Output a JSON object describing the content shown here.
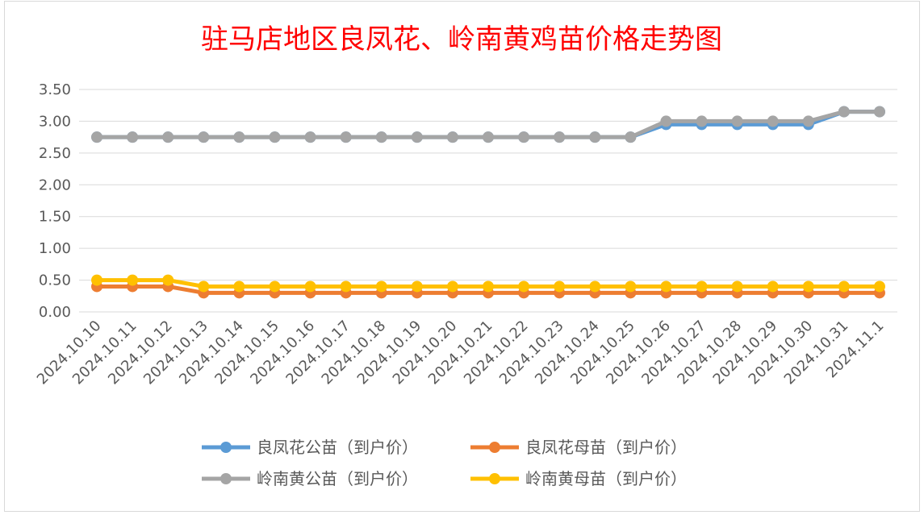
{
  "chart_data": {
    "type": "line",
    "title": "驻马店地区良凤花、岭南黄鸡苗价格走势图",
    "xlabel": "",
    "ylabel": "",
    "ylim": [
      0,
      3.5
    ],
    "yticks": [
      "0.00",
      "0.50",
      "1.00",
      "1.50",
      "2.00",
      "2.50",
      "3.00",
      "3.50"
    ],
    "grid": true,
    "legend_position": "bottom",
    "categories": [
      "2024.10.10",
      "2024.10.11",
      "2024.10.12",
      "2024.10.13",
      "2024.10.14",
      "2024.10.15",
      "2024.10.16",
      "2024.10.17",
      "2024.10.18",
      "2024.10.19",
      "2024.10.20",
      "2024.10.21",
      "2024.10.22",
      "2024.10.23",
      "2024.10.24",
      "2024.10.25",
      "2024.10.26",
      "2024.10.27",
      "2024.10.28",
      "2024.10.29",
      "2024.10.30",
      "2024.10.31",
      "2024.11.1"
    ],
    "series": [
      {
        "name": "良凤花公苗（到户价）",
        "color": "#5b9bd5",
        "values": [
          2.75,
          2.75,
          2.75,
          2.75,
          2.75,
          2.75,
          2.75,
          2.75,
          2.75,
          2.75,
          2.75,
          2.75,
          2.75,
          2.75,
          2.75,
          2.75,
          2.95,
          2.95,
          2.95,
          2.95,
          2.95,
          3.15,
          3.15
        ]
      },
      {
        "name": "良凤花母苗（到户价）",
        "color": "#ed7d31",
        "values": [
          0.4,
          0.4,
          0.4,
          0.3,
          0.3,
          0.3,
          0.3,
          0.3,
          0.3,
          0.3,
          0.3,
          0.3,
          0.3,
          0.3,
          0.3,
          0.3,
          0.3,
          0.3,
          0.3,
          0.3,
          0.3,
          0.3,
          0.3
        ]
      },
      {
        "name": "岭南黄公苗（到户价）",
        "color": "#a5a5a5",
        "values": [
          2.75,
          2.75,
          2.75,
          2.75,
          2.75,
          2.75,
          2.75,
          2.75,
          2.75,
          2.75,
          2.75,
          2.75,
          2.75,
          2.75,
          2.75,
          2.75,
          3.0,
          3.0,
          3.0,
          3.0,
          3.0,
          3.15,
          3.15
        ]
      },
      {
        "name": "岭南黄母苗（到户价）",
        "color": "#ffc000",
        "values": [
          0.5,
          0.5,
          0.5,
          0.4,
          0.4,
          0.4,
          0.4,
          0.4,
          0.4,
          0.4,
          0.4,
          0.4,
          0.4,
          0.4,
          0.4,
          0.4,
          0.4,
          0.4,
          0.4,
          0.4,
          0.4,
          0.4,
          0.4
        ]
      }
    ]
  }
}
